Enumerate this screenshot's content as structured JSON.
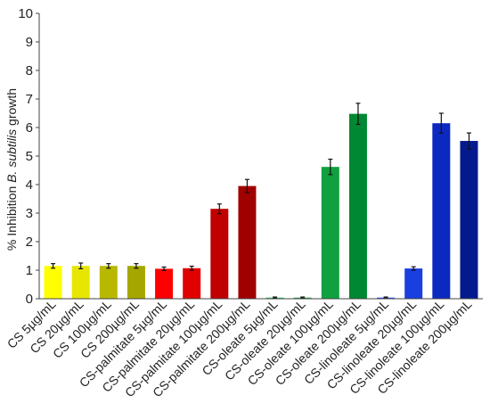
{
  "chart_data": {
    "type": "bar",
    "title": "",
    "xlabel": "",
    "ylabel": "% Inhibition B. subtilis growth",
    "ylabel_parts": {
      "prefix": "% Inhibition ",
      "italic": "B. subtilis",
      "suffix": " growth"
    },
    "ylim": [
      0,
      10
    ],
    "yticks": [
      0,
      1,
      2,
      3,
      4,
      5,
      6,
      7,
      8,
      9,
      10
    ],
    "grid": false,
    "categories": [
      "CS 5µg/mL",
      "CS 20µg/mL",
      "CS 100µg/mL",
      "CS 200µg/mL",
      "CS-palmitate 5µg/mL",
      "CS-palmitate 20µg/mL",
      "CS-palmitate 100µg/mL",
      "CS-palmitate 200µg/mL",
      "CS-oleate 5µg/mL",
      "CS-oleate 20µg/mL",
      "CS-oleate 100µg/mL",
      "CS-oleate 200µg/mL",
      "CS-linoleate 5µg/mL",
      "CS-linoleate 20µg/mL",
      "CS-linoleate 100µg/mL",
      "CS-linoleate 200µg/mL"
    ],
    "values": [
      1.15,
      1.15,
      1.15,
      1.15,
      1.05,
      1.07,
      3.15,
      3.95,
      0.04,
      0.04,
      4.62,
      6.48,
      0.04,
      1.06,
      6.15,
      5.53
    ],
    "errors": [
      0.08,
      0.1,
      0.08,
      0.08,
      0.06,
      0.07,
      0.17,
      0.23,
      0.02,
      0.02,
      0.27,
      0.37,
      0.02,
      0.06,
      0.35,
      0.28
    ],
    "colors": [
      "#ffff00",
      "#e6e600",
      "#b8b800",
      "#a6a600",
      "#ff0000",
      "#e00000",
      "#c00000",
      "#a00000",
      "#33cc66",
      "#22b455",
      "#10a040",
      "#008833",
      "#2255ff",
      "#1a3fe0",
      "#0b29c0",
      "#041a8c"
    ]
  }
}
